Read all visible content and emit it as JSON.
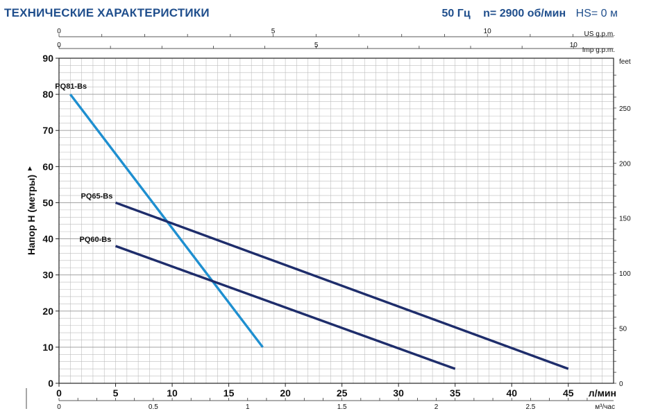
{
  "header": {
    "title": "ТЕХНИЧЕСКИЕ ХАРАКТЕРИСТИКИ",
    "freq": "50 Гц",
    "speed": "n= 2900 об/мин",
    "hs": "HS= 0 м"
  },
  "colors": {
    "title": "#1f4e8c",
    "grid": "#bdbdbd",
    "pq81": "#1e8fd0",
    "pq65_pq60": "#1e2d6b"
  },
  "chart_data": {
    "type": "line",
    "ylabel": "Напор H (метры)",
    "xlabel": "л/мин",
    "xlim": [
      0,
      49
    ],
    "ylim": [
      0,
      90
    ],
    "x_ticks": [
      0,
      5,
      10,
      15,
      20,
      25,
      30,
      35,
      40,
      45
    ],
    "y_ticks": [
      0,
      10,
      20,
      30,
      40,
      50,
      60,
      70,
      80,
      90
    ],
    "secondary_axes": {
      "us_gpm": {
        "label": "US g.p.m.",
        "ticks": [
          0,
          5,
          10
        ]
      },
      "imp_gpm": {
        "label": "Imp g.p.m.",
        "ticks": [
          0,
          5,
          10
        ]
      },
      "feet": {
        "label": "feet",
        "ticks": [
          0,
          50,
          100,
          150,
          200,
          250
        ]
      },
      "m3h": {
        "label": "м³/час",
        "ticks": [
          "0",
          "0.5",
          "1",
          "1.5",
          "2",
          "2.5"
        ]
      }
    },
    "series": [
      {
        "name": "PQ81-Bs",
        "x": [
          1,
          18
        ],
        "y": [
          80,
          10
        ]
      },
      {
        "name": "PQ65-Bs",
        "x": [
          5,
          45
        ],
        "y": [
          50,
          4
        ]
      },
      {
        "name": "PQ60-Bs",
        "x": [
          5,
          35
        ],
        "y": [
          38,
          4
        ]
      }
    ]
  }
}
